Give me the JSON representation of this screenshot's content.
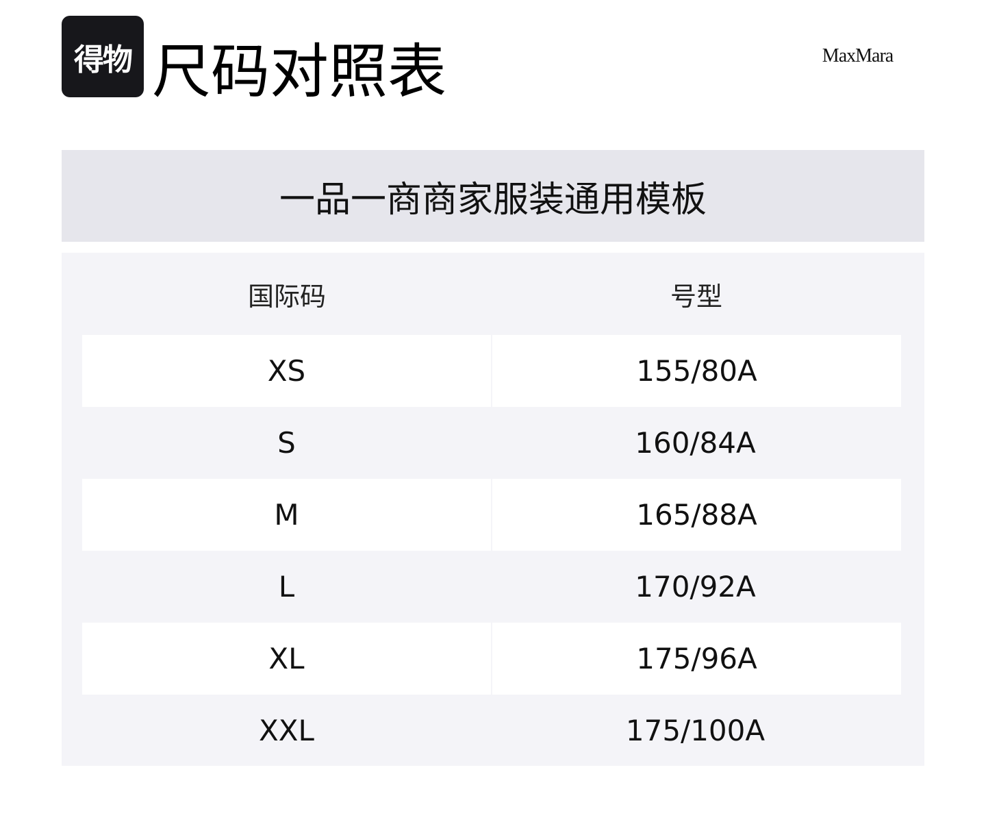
{
  "header": {
    "logo_text": "得物",
    "title": "尺码对照表",
    "brand": "MaxMara"
  },
  "template_title": "一品一商商家服装通用模板",
  "table": {
    "columns": [
      "国际码",
      "号型"
    ],
    "rows": [
      [
        "XS",
        "155/80A"
      ],
      [
        "S",
        "160/84A"
      ],
      [
        "M",
        "165/88A"
      ],
      [
        "L",
        "170/92A"
      ],
      [
        "XL",
        "175/96A"
      ],
      [
        "XXL",
        "175/100A"
      ]
    ]
  },
  "colors": {
    "band_bg": "#e6e6ec",
    "table_bg": "#f4f4f8",
    "stripe": "#ffffff",
    "logo_bg": "#17171b"
  }
}
